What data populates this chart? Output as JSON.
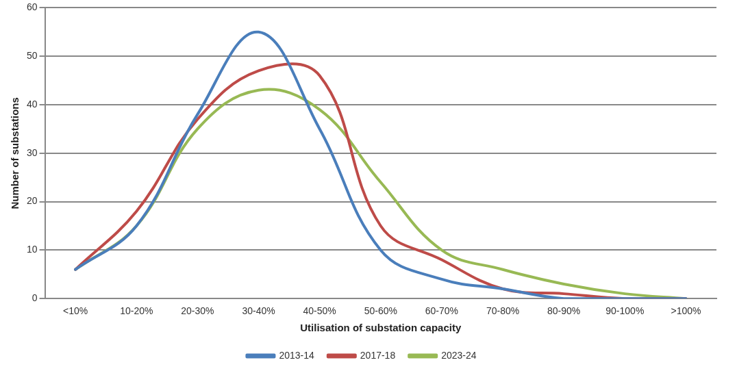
{
  "chart_data": {
    "type": "line",
    "xlabel": "Utilisation of substation capacity",
    "ylabel": "Number of substations",
    "categories": [
      "<10%",
      "10-20%",
      "20-30%",
      "30-40%",
      "40-50%",
      "50-60%",
      "60-70%",
      "70-80%",
      "80-90%",
      "90-100%",
      ">100%"
    ],
    "series": [
      {
        "name": "2013-14",
        "color": "#4a7ebb",
        "values": [
          6,
          15,
          38,
          55,
          35,
          10,
          4,
          2,
          0,
          0,
          0
        ]
      },
      {
        "name": "2017-18",
        "color": "#be4b48",
        "values": [
          6,
          18,
          37,
          47,
          46,
          15,
          8,
          2,
          1,
          0,
          0
        ]
      },
      {
        "name": "2023-24",
        "color": "#98b954",
        "values": [
          6,
          15,
          35,
          43,
          39,
          24,
          10,
          6,
          3,
          1,
          0
        ]
      }
    ],
    "ylim": [
      0,
      60
    ],
    "yticks": [
      0,
      10,
      20,
      30,
      40,
      50,
      60
    ],
    "grid": "y",
    "legend": "bottom",
    "marker": "none",
    "line_style": "solid"
  }
}
